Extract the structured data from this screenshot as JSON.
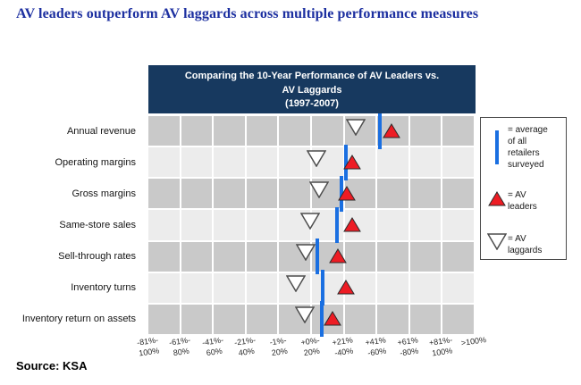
{
  "page_title": "AV leaders outperform AV laggards across multiple performance measures",
  "source_note": "Source: KSA",
  "colors": {
    "title_text": "#1c2fa0",
    "header_bg": "#17395f",
    "header_text": "#ffffff",
    "row_dark": "#c9c9c9",
    "row_light": "#ececec",
    "grid_gap": "#ffffff",
    "average_line_blue": "#1a6fe1",
    "leader_red": "#ed1c24",
    "leader_stroke": "#2a2a2a",
    "laggard_fill": "#ffffff",
    "laggard_stroke": "#4d4d4d"
  },
  "chart_data": {
    "type": "scatter",
    "title": "Comparing the 10-Year Performance of AV Leaders vs.\nAV Laggards\n(1997-2007)",
    "categories": [
      "Annual revenue",
      "Operating margins",
      "Gross margins",
      "Same-store sales",
      "Sell-through rates",
      "Inventory turns",
      "Inventory return on assets"
    ],
    "x_tick_labels": [
      "-81%-\n100%",
      "-61%-\n80%",
      "-41%-\n60%",
      "-21%-\n40%",
      "-1%-\n20%",
      "+0%-\n20%",
      "+21%\n-40%",
      "+41%\n-60%",
      "+61%\n-80%",
      "+81%-\n100%",
      ">100%"
    ],
    "grid_columns": 10,
    "legend_position": "right",
    "series": [
      {
        "name": "Average of all retailers surveyed",
        "marker": "vertical-blue-line",
        "axis_position_pct": [
          71.2,
          60.7,
          59.3,
          58.0,
          51.9,
          53.6,
          53.3
        ],
        "nearest_tick": [
          "+41%-60%",
          "+21%-40%",
          "+21%-40%",
          "+21%-40%",
          "+0%-20%",
          "+0%-20%",
          "+0%-20%"
        ]
      },
      {
        "name": "AV leaders",
        "marker": "red-up-triangle",
        "axis_position_pct": [
          74.7,
          62.6,
          61.0,
          62.6,
          58.2,
          60.7,
          56.6
        ],
        "nearest_tick": [
          "+41%-60%",
          "+21%-40%",
          "+21%-40%",
          "+21%-40%",
          "+21%-40%",
          "+21%-40%",
          "+21%-40%"
        ]
      },
      {
        "name": "AV laggards",
        "marker": "white-down-triangle",
        "axis_position_pct": [
          63.7,
          51.6,
          52.5,
          49.7,
          48.4,
          45.3,
          48.1
        ],
        "nearest_tick": [
          "+21%-40%",
          "+0%-20%",
          "+0%-20%",
          "+0%-20%",
          "+0%-20%",
          "+0%-20%",
          "+0%-20%"
        ]
      }
    ]
  },
  "legend": {
    "items": [
      {
        "symbol": "average-line",
        "label": "= average\nof all\nretailers\nsurveyed"
      },
      {
        "symbol": "av-leaders-triangle",
        "label": "= AV\nleaders"
      },
      {
        "symbol": "av-laggards-triangle",
        "label": "= AV\nlaggards"
      }
    ]
  }
}
